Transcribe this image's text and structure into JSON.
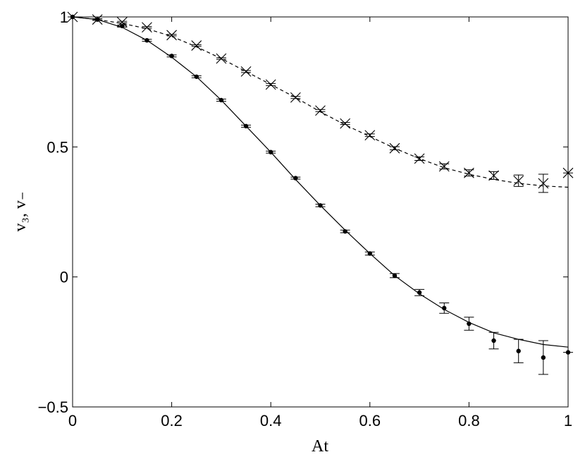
{
  "chart_data": {
    "type": "line",
    "xlabel": "At",
    "ylabel": "v₃, v₋",
    "x": [
      0,
      0.05,
      0.1,
      0.15,
      0.2,
      0.25,
      0.3,
      0.35,
      0.4,
      0.45,
      0.5,
      0.55,
      0.6,
      0.65,
      0.7,
      0.75,
      0.8,
      0.85,
      0.9,
      0.95,
      1
    ],
    "series": [
      {
        "color": "#000000",
        "marker": "dot",
        "line": "none",
        "values": [
          1,
          0.99,
          0.965,
          0.91,
          0.85,
          0.77,
          0.68,
          0.58,
          0.48,
          0.38,
          0.275,
          0.175,
          0.09,
          0.005,
          -0.06,
          -0.12,
          -0.18,
          -0.245,
          -0.285,
          -0.31,
          -0.29
        ],
        "errors": [
          0,
          0.003,
          0.004,
          0.004,
          0.004,
          0.004,
          0.004,
          0.004,
          0.004,
          0.004,
          0.005,
          0.005,
          0.006,
          0.008,
          0.012,
          0.02,
          0.025,
          0.032,
          0.045,
          0.065,
          0
        ]
      },
      {
        "color": "#000000",
        "marker": "x",
        "line": "none",
        "values": [
          1,
          0.99,
          0.98,
          0.96,
          0.93,
          0.89,
          0.84,
          0.79,
          0.74,
          0.69,
          0.64,
          0.59,
          0.545,
          0.495,
          0.455,
          0.425,
          0.4,
          0.39,
          0.37,
          0.36,
          0.4
        ],
        "errors": [
          0,
          0.003,
          0.003,
          0.003,
          0.003,
          0.003,
          0.003,
          0.004,
          0.004,
          0.004,
          0.004,
          0.004,
          0.005,
          0.006,
          0.007,
          0.01,
          0.012,
          0.015,
          0.022,
          0.035,
          0
        ]
      },
      {
        "color": "#000000",
        "marker": "none",
        "line": "solid",
        "values": [
          1,
          0.99,
          0.96,
          0.91,
          0.845,
          0.77,
          0.68,
          0.58,
          0.48,
          0.375,
          0.275,
          0.18,
          0.09,
          0.005,
          -0.065,
          -0.125,
          -0.175,
          -0.215,
          -0.24,
          -0.26,
          -0.27
        ]
      },
      {
        "color": "#000000",
        "marker": "none",
        "line": "dashed",
        "values": [
          1,
          0.99,
          0.975,
          0.955,
          0.925,
          0.885,
          0.84,
          0.79,
          0.74,
          0.69,
          0.635,
          0.585,
          0.54,
          0.495,
          0.455,
          0.42,
          0.395,
          0.375,
          0.36,
          0.35,
          0.345
        ]
      }
    ],
    "xlim": [
      0,
      1
    ],
    "xticks": [
      0,
      0.2,
      0.4,
      0.6,
      0.8,
      1
    ],
    "ylim": [
      -0.5,
      1
    ],
    "yticks": [
      {
        "value": -0.5,
        "label": "−0.5"
      },
      0,
      0.5,
      1
    ],
    "grid": false
  }
}
